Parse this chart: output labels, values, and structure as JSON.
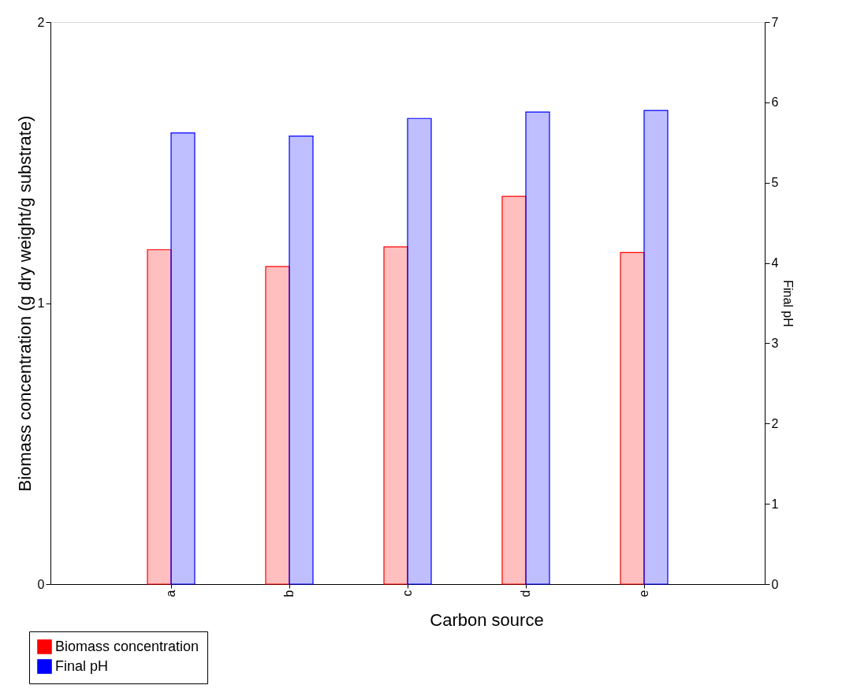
{
  "chart_data": {
    "type": "bar",
    "xlabel": "Carbon source",
    "ylabel": "Biomass concentration (g dry weight/g substrate)",
    "y2label": "Final pH",
    "categories": [
      "a",
      "b",
      "c",
      "d",
      "e"
    ],
    "series": [
      {
        "name": "Biomass concentration",
        "color": "#ff0000",
        "values": [
          1.19,
          1.13,
          1.2,
          1.38,
          1.18
        ]
      },
      {
        "name": "Final pH",
        "color": "#0000ff",
        "axis": "y2",
        "values": [
          5.62,
          5.58,
          5.8,
          5.88,
          5.9
        ]
      }
    ],
    "ylim": [
      0,
      2
    ],
    "yticks": [
      0,
      1,
      2
    ],
    "y2lim": [
      0,
      7
    ],
    "y2ticks": [
      0,
      1,
      2,
      3,
      4,
      5,
      6,
      7
    ],
    "grid": false,
    "legend": "bottom left"
  }
}
